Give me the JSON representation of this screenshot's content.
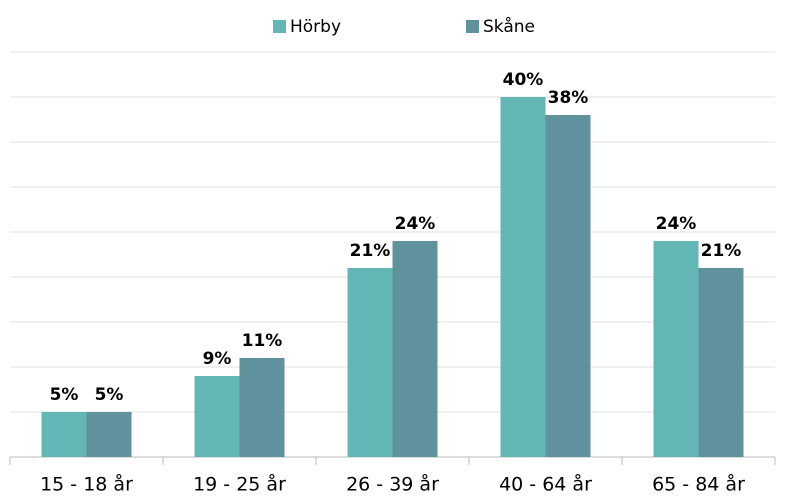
{
  "chart_data": {
    "type": "bar",
    "categories": [
      "15 - 18 år",
      "19 - 25 år",
      "26 - 39 år",
      "40 - 64 år",
      "65 - 84 år"
    ],
    "series": [
      {
        "name": "Hörby",
        "color": "#62b6b4",
        "values": [
          5,
          9,
          21,
          40,
          24
        ],
        "value_labels": [
          "5%",
          "9%",
          "21%",
          "40%",
          "24%"
        ]
      },
      {
        "name": "Skåne",
        "color": "#5f929c",
        "values": [
          5,
          11,
          24,
          38,
          21
        ],
        "value_labels": [
          "5%",
          "11%",
          "24%",
          "38%",
          "21%"
        ]
      }
    ],
    "ylim": [
      0,
      45
    ],
    "yticks": [
      0,
      5,
      10,
      15,
      20,
      25,
      30,
      35,
      40,
      45
    ],
    "grid": true,
    "legend": "top"
  }
}
